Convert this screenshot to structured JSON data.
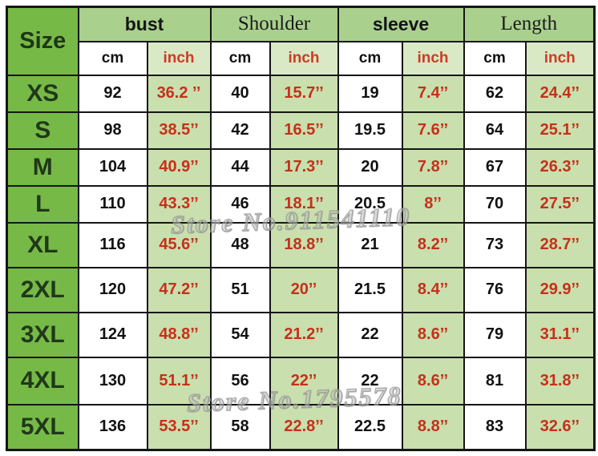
{
  "table": {
    "corner_label": "Size",
    "groups": [
      {
        "label": "bust"
      },
      {
        "label": "Shoulder"
      },
      {
        "label": "sleeve"
      },
      {
        "label": "Length"
      }
    ],
    "unit_cm": "cm",
    "unit_inch": "inch",
    "rows": [
      {
        "size": "XS",
        "cells": [
          "92",
          "36.2 ’’",
          "40",
          "15.7’’",
          "19",
          "7.4’’",
          "62",
          "24.4’’"
        ]
      },
      {
        "size": "S",
        "cells": [
          "98",
          "38.5’’",
          "42",
          "16.5’’",
          "19.5",
          "7.6’’",
          "64",
          "25.1’’"
        ]
      },
      {
        "size": "M",
        "cells": [
          "104",
          "40.9’’",
          "44",
          "17.3’’",
          "20",
          "7.8’’",
          "67",
          "26.3’’"
        ]
      },
      {
        "size": "L",
        "cells": [
          "110",
          "43.3’’",
          "46",
          "18.1’’",
          "20.5",
          "8’’",
          "70",
          "27.5’’"
        ]
      },
      {
        "size": "XL",
        "cells": [
          "116",
          "45.6’’",
          "48",
          "18.8’’",
          "21",
          "8.2’’",
          "73",
          "28.7’’"
        ]
      },
      {
        "size": "2XL",
        "cells": [
          "120",
          "47.2’’",
          "51",
          "20’’",
          "21.5",
          "8.4’’",
          "76",
          "29.9’’"
        ]
      },
      {
        "size": "3XL",
        "cells": [
          "124",
          "48.8’’",
          "54",
          "21.2’’",
          "22",
          "8.6’’",
          "79",
          "31.1’’"
        ]
      },
      {
        "size": "4XL",
        "cells": [
          "130",
          "51.1’’",
          "56",
          "22’’",
          "22",
          "8.6’’",
          "81",
          "31.8’’"
        ]
      },
      {
        "size": "5XL",
        "cells": [
          "136",
          "53.5’’",
          "58",
          "22.8’’",
          "22.5",
          "8.8’’",
          "83",
          "32.6’’"
        ]
      }
    ]
  },
  "watermarks": [
    {
      "text": "Store No.911541110"
    },
    {
      "text": "Store No.1795578"
    }
  ],
  "colors": {
    "size_column_green": "#76b947",
    "group_header_green": "#a9d18d",
    "unit_inch_green": "#d9e9c5",
    "inch_cell_green": "#c9dfad",
    "red_text": "#c5301b",
    "black_text": "#111111",
    "border": "#161616"
  },
  "chart_data": {
    "type": "table",
    "title": "Garment size chart (cm / inch)",
    "columns": [
      "Size",
      "bust cm",
      "bust inch",
      "Shoulder cm",
      "Shoulder inch",
      "sleeve cm",
      "sleeve inch",
      "Length cm",
      "Length inch"
    ],
    "rows": [
      [
        "XS",
        92,
        "36.2",
        40,
        "15.7",
        19,
        "7.4",
        62,
        "24.4"
      ],
      [
        "S",
        98,
        "38.5",
        42,
        "16.5",
        19.5,
        "7.6",
        64,
        "25.1"
      ],
      [
        "M",
        104,
        "40.9",
        44,
        "17.3",
        20,
        "7.8",
        67,
        "26.3"
      ],
      [
        "L",
        110,
        "43.3",
        46,
        "18.1",
        20.5,
        "8",
        70,
        "27.5"
      ],
      [
        "XL",
        116,
        "45.6",
        48,
        "18.8",
        21,
        "8.2",
        73,
        "28.7"
      ],
      [
        "2XL",
        120,
        "47.2",
        51,
        "20",
        21.5,
        "8.4",
        76,
        "29.9"
      ],
      [
        "3XL",
        124,
        "48.8",
        54,
        "21.2",
        22,
        "8.6",
        79,
        "31.1"
      ],
      [
        "4XL",
        130,
        "51.1",
        56,
        "22",
        22,
        "8.6",
        81,
        "31.8"
      ],
      [
        "5XL",
        136,
        "53.5",
        58,
        "22.8",
        22.5,
        "8.8",
        83,
        "32.6"
      ]
    ],
    "notes": "inch values shown in red; cm values in black; inch columns on light green background"
  }
}
